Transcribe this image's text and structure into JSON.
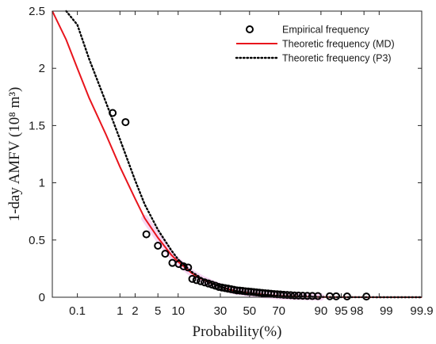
{
  "chart_data": {
    "type": "scatter",
    "xlabel": "Probability(%)",
    "ylabel": "1-day AMFV (10⁸ m³)",
    "x_scale": "normal-probability",
    "xlim": [
      0.02,
      99.9
    ],
    "ylim": [
      0,
      2.5
    ],
    "x_ticks": [
      0.1,
      1,
      2,
      5,
      10,
      30,
      50,
      70,
      90,
      95,
      98,
      99,
      99.9
    ],
    "x_tick_labels": [
      "0.1",
      "1",
      "2",
      "5",
      "10",
      "30",
      "50",
      "70",
      "90",
      "95",
      "98",
      "99",
      "99.9"
    ],
    "y_ticks": [
      0,
      0.5,
      1,
      1.5,
      2,
      2.5
    ],
    "y_tick_labels": [
      "0",
      "0.5",
      "1",
      "1.5",
      "2",
      "2.5"
    ],
    "grid": false,
    "legend_position": "top-right",
    "series": [
      {
        "name": "Empirical frequency",
        "kind": "markers",
        "marker": "circle",
        "color": "#000000",
        "points": [
          [
            0.7,
            1.61
          ],
          [
            1.3,
            1.53
          ],
          [
            3.2,
            0.55
          ],
          [
            5.0,
            0.45
          ],
          [
            6.5,
            0.38
          ],
          [
            8.3,
            0.3
          ],
          [
            10.2,
            0.29
          ],
          [
            11.8,
            0.27
          ],
          [
            13.5,
            0.26
          ],
          [
            15.2,
            0.16
          ],
          [
            17,
            0.15
          ],
          [
            19,
            0.14
          ],
          [
            21,
            0.13
          ],
          [
            23,
            0.12
          ],
          [
            25,
            0.11
          ],
          [
            27,
            0.1
          ],
          [
            29,
            0.09
          ],
          [
            31,
            0.085
          ],
          [
            33,
            0.08
          ],
          [
            35,
            0.075
          ],
          [
            37,
            0.07
          ],
          [
            39,
            0.065
          ],
          [
            41,
            0.06
          ],
          [
            43,
            0.058
          ],
          [
            45,
            0.055
          ],
          [
            47,
            0.052
          ],
          [
            49,
            0.05
          ],
          [
            51,
            0.048
          ],
          [
            53,
            0.045
          ],
          [
            55,
            0.042
          ],
          [
            57,
            0.04
          ],
          [
            59,
            0.037
          ],
          [
            61,
            0.035
          ],
          [
            63,
            0.033
          ],
          [
            65,
            0.03
          ],
          [
            67,
            0.028
          ],
          [
            69,
            0.026
          ],
          [
            71,
            0.024
          ],
          [
            73,
            0.022
          ],
          [
            75,
            0.02
          ],
          [
            77,
            0.018
          ],
          [
            79,
            0.016
          ],
          [
            81,
            0.015
          ],
          [
            83,
            0.013
          ],
          [
            85,
            0.012
          ],
          [
            87,
            0.011
          ],
          [
            89,
            0.01
          ],
          [
            92.5,
            0.009
          ],
          [
            94,
            0.008
          ],
          [
            96,
            0.007
          ],
          [
            98.2,
            0.006
          ]
        ]
      },
      {
        "name": "Theoretic frequency (MD)",
        "kind": "line",
        "style": "solid",
        "color": "#e8141c",
        "points": [
          [
            0.02,
            2.5
          ],
          [
            0.05,
            2.25
          ],
          [
            0.1,
            2.0
          ],
          [
            0.2,
            1.74
          ],
          [
            0.5,
            1.42
          ],
          [
            1,
            1.14
          ],
          [
            2,
            0.86
          ],
          [
            3,
            0.69
          ],
          [
            5,
            0.52
          ],
          [
            8,
            0.37
          ],
          [
            10,
            0.31
          ],
          [
            15,
            0.21
          ],
          [
            20,
            0.155
          ],
          [
            30,
            0.09
          ],
          [
            40,
            0.055
          ],
          [
            50,
            0.035
          ],
          [
            60,
            0.022
          ],
          [
            70,
            0.012
          ],
          [
            80,
            0.006
          ],
          [
            90,
            0.002
          ],
          [
            95,
            0.001
          ],
          [
            99,
            0.0
          ],
          [
            99.9,
            0.0
          ]
        ]
      },
      {
        "name": "Theoretic frequency (P3)",
        "kind": "line",
        "style": "dotted",
        "color": "#000000",
        "points": [
          [
            0.05,
            2.5
          ],
          [
            0.1,
            2.38
          ],
          [
            0.2,
            2.08
          ],
          [
            0.5,
            1.7
          ],
          [
            1,
            1.38
          ],
          [
            2,
            1.02
          ],
          [
            3,
            0.81
          ],
          [
            5,
            0.59
          ],
          [
            8,
            0.41
          ],
          [
            10,
            0.33
          ],
          [
            15,
            0.22
          ],
          [
            20,
            0.16
          ],
          [
            30,
            0.09
          ],
          [
            40,
            0.055
          ],
          [
            50,
            0.034
          ],
          [
            60,
            0.021
          ],
          [
            70,
            0.012
          ],
          [
            80,
            0.006
          ],
          [
            90,
            0.002
          ],
          [
            95,
            0.001
          ],
          [
            99,
            0.0
          ],
          [
            99.9,
            0.0
          ]
        ]
      }
    ]
  }
}
